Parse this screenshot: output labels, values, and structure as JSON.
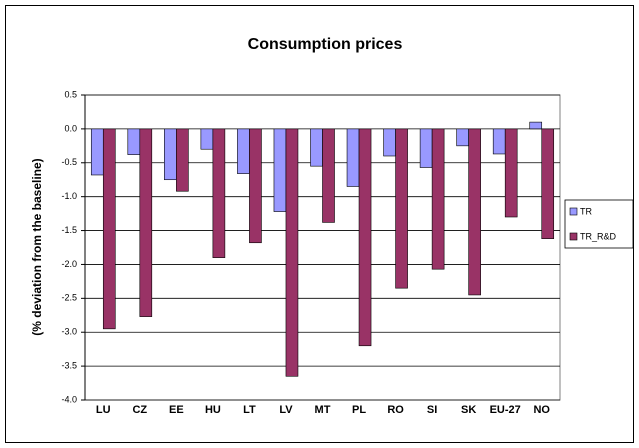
{
  "chart_data": {
    "type": "bar",
    "title": "Consumption prices",
    "y_label": "(% deviation from the baseline)",
    "categories": [
      "LU",
      "CZ",
      "EE",
      "HU",
      "LT",
      "LV",
      "MT",
      "PL",
      "RO",
      "SI",
      "SK",
      "EU-27",
      "NO"
    ],
    "series": [
      {
        "name": "TR",
        "color": "#9999ff",
        "values": [
          -0.68,
          -0.38,
          -0.75,
          -0.3,
          -0.66,
          -1.22,
          -0.55,
          -0.85,
          -0.4,
          -0.57,
          -0.25,
          -0.37,
          0.1
        ]
      },
      {
        "name": "TR_R&D",
        "color": "#993366",
        "values": [
          -2.95,
          -2.77,
          -0.92,
          -1.9,
          -1.68,
          -3.65,
          -1.38,
          -3.2,
          -2.35,
          -2.07,
          -2.45,
          -1.3,
          -1.62
        ]
      }
    ],
    "ylim": [
      -4,
      0.5
    ],
    "yticks": [
      0.5,
      {
        "value": 0,
        "label": "0.0"
      },
      -0.5,
      {
        "value": -1,
        "label": "-1.0"
      },
      -1.5,
      {
        "value": -2,
        "label": "-2.0"
      },
      -2.5,
      {
        "value": -3,
        "label": "-3.0"
      },
      -3.5,
      {
        "value": -4,
        "label": "-4.0"
      }
    ],
    "grid": true,
    "legend": "right"
  }
}
